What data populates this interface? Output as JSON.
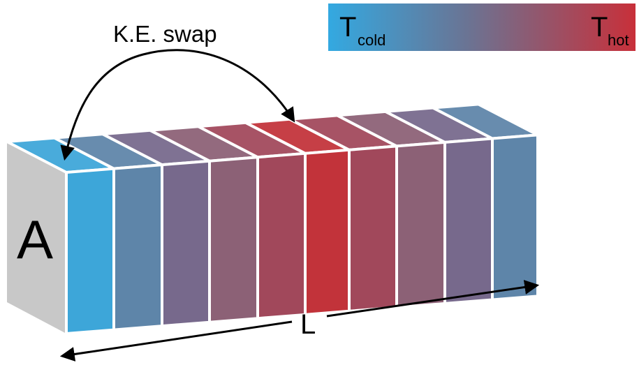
{
  "title_annotation": "K.E. swap",
  "legend": {
    "cold_symbol": "T",
    "cold_subscript": "cold",
    "hot_symbol": "T",
    "hot_subscript": "hot",
    "cold_color": "#33A9E1",
    "hot_color": "#C8303A"
  },
  "face_label": "A",
  "length_label": "L",
  "face_color": "#C8C8C8",
  "slab_colors": [
    "#3DA6D9",
    "#5E85A9",
    "#77698C",
    "#8C6176",
    "#A1485B",
    "#C2333A",
    "#A1485B",
    "#8C6176",
    "#77698C",
    "#5E85A9"
  ]
}
